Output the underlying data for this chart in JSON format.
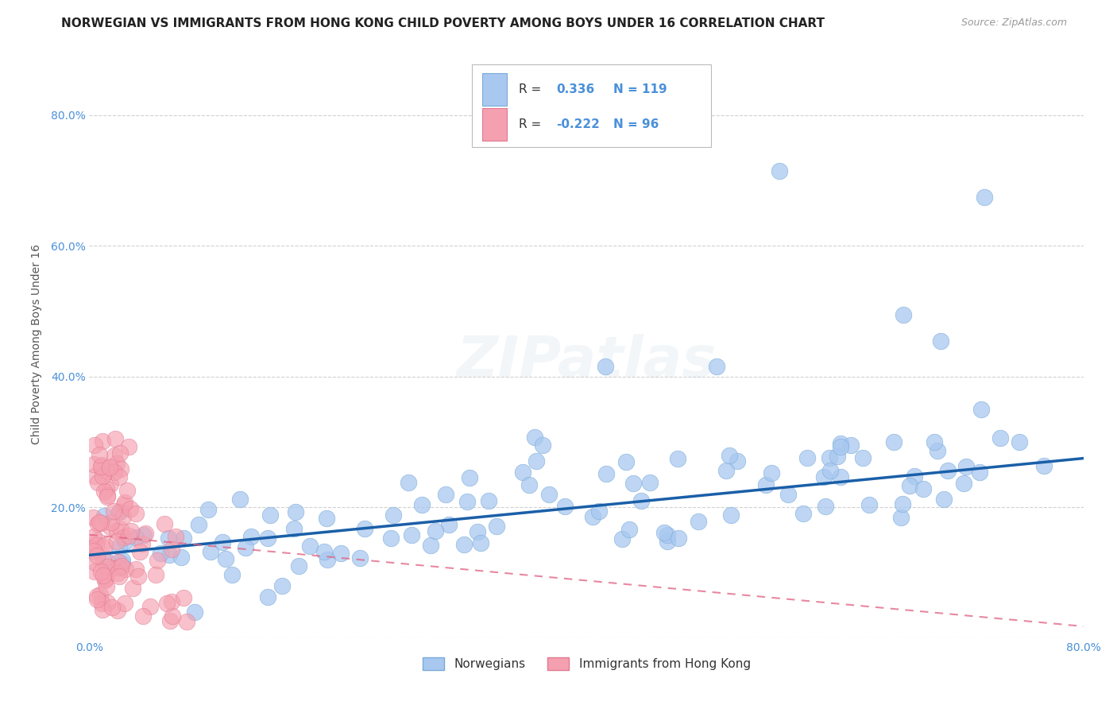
{
  "title": "NORWEGIAN VS IMMIGRANTS FROM HONG KONG CHILD POVERTY AMONG BOYS UNDER 16 CORRELATION CHART",
  "source": "Source: ZipAtlas.com",
  "ylabel": "Child Poverty Among Boys Under 16",
  "xlim": [
    0.0,
    0.8
  ],
  "ylim": [
    0.0,
    0.9
  ],
  "x_ticks": [
    0.0,
    0.1,
    0.2,
    0.3,
    0.4,
    0.5,
    0.6,
    0.7,
    0.8
  ],
  "y_ticks": [
    0.0,
    0.2,
    0.4,
    0.6,
    0.8
  ],
  "grid_color": "#cccccc",
  "background_color": "#ffffff",
  "watermark": "ZIPatlas",
  "blue_R": 0.336,
  "blue_N": 119,
  "pink_R": -0.222,
  "pink_N": 96,
  "blue_color": "#a8c8f0",
  "pink_color": "#f5a0b0",
  "blue_edge_color": "#7aaad8",
  "pink_edge_color": "#e07890",
  "blue_line_color": "#1a5fa8",
  "pink_line_color": "#e06080",
  "legend_label_blue": "Norwegians",
  "legend_label_pink": "Immigrants from Hong Kong",
  "title_fontsize": 11,
  "axis_label_fontsize": 10,
  "tick_fontsize": 10,
  "watermark_fontsize": 52,
  "watermark_alpha": 0.1,
  "watermark_color": "#88aacc",
  "blue_trend_x": [
    0.0,
    0.8
  ],
  "blue_trend_y": [
    0.127,
    0.275
  ],
  "pink_trend_x": [
    0.0,
    0.8
  ],
  "pink_trend_y": [
    0.158,
    0.018
  ]
}
